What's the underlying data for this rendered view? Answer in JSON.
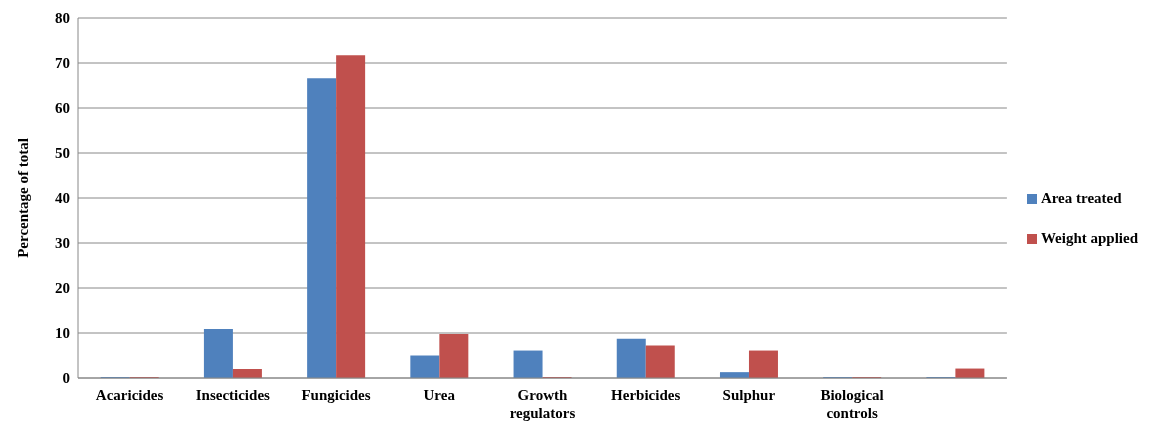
{
  "chart_data": {
    "type": "bar",
    "ylabel": "Percentage of total",
    "categories": [
      "Acaricides",
      "Insecticides",
      "Fungicides",
      "Urea",
      "Growth regulators",
      "Herbicides",
      "Sulphur",
      "Biological controls",
      null
    ],
    "series": [
      {
        "name": "Area treated",
        "color": "#4f81bd",
        "values": [
          0,
          10.9,
          66.6,
          5,
          6.1,
          8.7,
          1.3,
          0,
          0
        ]
      },
      {
        "name": "Weight applied",
        "color": "#c0504d",
        "values": [
          0,
          2,
          71.7,
          9.8,
          0,
          7.2,
          6.1,
          0,
          2.1
        ]
      }
    ],
    "ylim": [
      0,
      80
    ],
    "yticks": [
      0,
      10,
      20,
      30,
      40,
      50,
      60,
      70,
      80
    ],
    "grid": "y",
    "legend": "right"
  }
}
